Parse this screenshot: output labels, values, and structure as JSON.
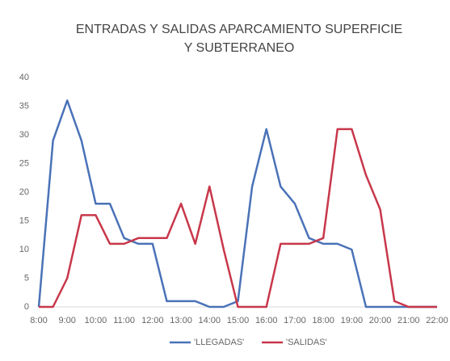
{
  "chart_data": {
    "type": "line",
    "title": [
      "ENTRADAS Y SALIDAS APARCAMIENTO SUPERFICIE",
      "Y SUBTERRANEO"
    ],
    "categories": [
      "8:00",
      null,
      "9:00",
      null,
      "10:00",
      null,
      "11:00",
      null,
      "12:00",
      null,
      "13:00",
      null,
      "14:00",
      null,
      "15:00",
      null,
      "16:00",
      null,
      "17:00",
      null,
      "18:00",
      null,
      "19:00",
      null,
      "20:00",
      null,
      "21:00",
      null,
      "22:00"
    ],
    "series": [
      {
        "name": "'LLEGADAS'",
        "color": "#4a72b8",
        "values": [
          0,
          29,
          36,
          29,
          18,
          18,
          12,
          11,
          11,
          1,
          1,
          1,
          0,
          0,
          1,
          21,
          31,
          21,
          18,
          12,
          11,
          11,
          10,
          0,
          0,
          0,
          0,
          0,
          0
        ]
      },
      {
        "name": "'SALIDAS'",
        "color": "#c8374a",
        "values": [
          0,
          0,
          5,
          16,
          16,
          11,
          11,
          12,
          12,
          12,
          18,
          11,
          21,
          10,
          0,
          0,
          0,
          11,
          11,
          11,
          12,
          31,
          31,
          23,
          17,
          1,
          0,
          0,
          0
        ]
      }
    ],
    "ylim": [
      0,
      40
    ],
    "yticks": [
      0,
      5,
      10,
      15,
      20,
      25,
      30,
      35,
      40
    ],
    "grid": false,
    "legend": "bottom"
  }
}
